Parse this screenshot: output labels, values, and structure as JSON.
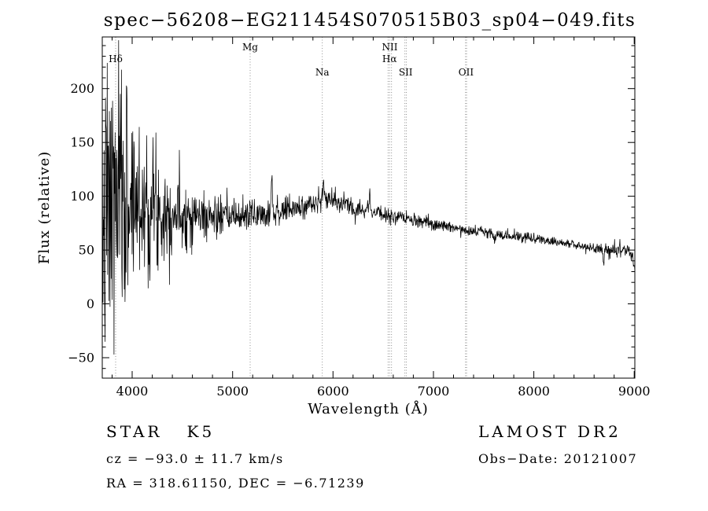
{
  "chart_data": {
    "type": "line",
    "title": "spec−56208−EG211454S070515B03_sp04−049.fits",
    "xlabel": "Wavelength (Å)",
    "ylabel": "Flux (relative)",
    "xlim": [
      3702,
      9006
    ],
    "ylim": [
      -69,
      248
    ],
    "x_ticks": [
      4000,
      5000,
      6000,
      7000,
      8000,
      9000
    ],
    "x_tick_labels": [
      "4000",
      "5000",
      "6000",
      "7000",
      "8000",
      "9000"
    ],
    "x_minor_step": 200,
    "y_ticks": [
      -50,
      0,
      50,
      100,
      150,
      200
    ],
    "y_tick_labels": [
      "−50",
      "0",
      "50",
      "100",
      "150",
      "200"
    ],
    "y_minor_step": 10,
    "grid": false,
    "line_color": "#000000",
    "spectral_lines": [
      {
        "label": "Hδ",
        "wavelengths": [
          3835
        ],
        "row": 2
      },
      {
        "label": "Mg",
        "wavelengths": [
          5175
        ],
        "row": 1
      },
      {
        "label": "Na",
        "wavelengths": [
          5893
        ],
        "row": 3
      },
      {
        "label": "NII",
        "wavelengths": [
          6548,
          6583
        ],
        "row": 1
      },
      {
        "label": "Hα",
        "wavelengths": [
          6563
        ],
        "row": 2
      },
      {
        "label": "SII",
        "wavelengths": [
          6716,
          6731
        ],
        "row": 3
      },
      {
        "label": "OII",
        "wavelengths": [
          7320,
          7330
        ],
        "row": 3
      }
    ],
    "spectrum": {
      "seed": 7,
      "n_points": 1500,
      "clip": [
        -66,
        245
      ],
      "continuum": [
        [
          3702,
          70
        ],
        [
          3760,
          85
        ],
        [
          3850,
          95
        ],
        [
          3950,
          100
        ],
        [
          4050,
          95
        ],
        [
          4200,
          90
        ],
        [
          4350,
          86
        ],
        [
          4500,
          84
        ],
        [
          4700,
          81
        ],
        [
          4900,
          80
        ],
        [
          5100,
          82
        ],
        [
          5300,
          84
        ],
        [
          5500,
          86
        ],
        [
          5700,
          90
        ],
        [
          5850,
          95
        ],
        [
          5950,
          98
        ],
        [
          6050,
          94
        ],
        [
          6200,
          90
        ],
        [
          6350,
          87
        ],
        [
          6500,
          83
        ],
        [
          6650,
          80
        ],
        [
          6800,
          77
        ],
        [
          7000,
          74
        ],
        [
          7200,
          71
        ],
        [
          7400,
          68
        ],
        [
          7600,
          65
        ],
        [
          7800,
          63
        ],
        [
          8000,
          61
        ],
        [
          8200,
          58
        ],
        [
          8400,
          55
        ],
        [
          8600,
          52
        ],
        [
          8800,
          50
        ],
        [
          8950,
          49
        ],
        [
          8990,
          40
        ],
        [
          9006,
          33
        ]
      ],
      "noise_sigma": [
        [
          3702,
          75
        ],
        [
          3800,
          70
        ],
        [
          3900,
          60
        ],
        [
          4000,
          48
        ],
        [
          4100,
          38
        ],
        [
          4250,
          28
        ],
        [
          4400,
          20
        ],
        [
          4600,
          14
        ],
        [
          4800,
          10
        ],
        [
          5000,
          8
        ],
        [
          5300,
          7
        ],
        [
          5600,
          6
        ],
        [
          5900,
          5
        ],
        [
          6200,
          4.5
        ],
        [
          6500,
          3.5
        ],
        [
          7000,
          3
        ],
        [
          7500,
          2.5
        ],
        [
          8000,
          2.2
        ],
        [
          8500,
          2.5
        ],
        [
          8800,
          3
        ],
        [
          9006,
          3.5
        ]
      ],
      "spikes": [
        [
          5390,
          45,
          5
        ],
        [
          5905,
          18,
          5
        ],
        [
          6365,
          26,
          4
        ],
        [
          7610,
          -9,
          8
        ],
        [
          8695,
          -13,
          6
        ]
      ]
    }
  },
  "annotations": {
    "class_line": "STAR   K5",
    "survey": "LAMOST DR2",
    "cz_line": "cz = −93.0 ± 11.7 km/s",
    "obs_date": "Obs−Date: 20121007",
    "radec_line": "RA = 318.61150, DEC = −6.71239"
  }
}
